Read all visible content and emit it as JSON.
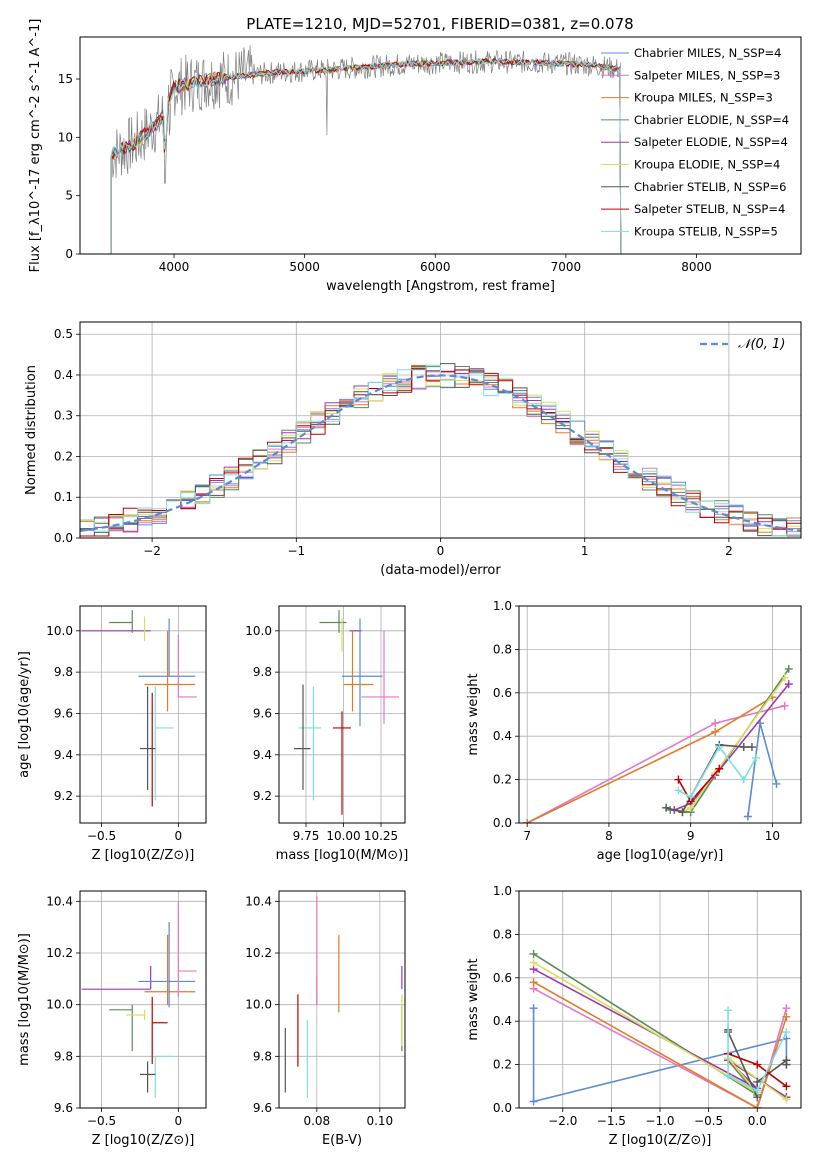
{
  "chart_data": [
    {
      "type": "line",
      "title": "PLATE=1210, MJD=52701, FIBERID=0381, z=0.078",
      "xlabel": "wavelength [Angstrom, rest frame]",
      "ylabel": "Flux [f_λ10^-17 erg cm^-2 s^-1 A^-1]",
      "xlim": [
        3280,
        8800
      ],
      "ylim": [
        0,
        18.6
      ],
      "xticks": [
        4000,
        5000,
        6000,
        7000,
        8000
      ],
      "yticks": [
        0,
        5,
        10,
        15
      ],
      "legend_position": "right",
      "data_color": "#808080",
      "continuum_anchors": {
        "x": [
          3520,
          3700,
          3900,
          4000,
          4300,
          4800,
          5200,
          5800,
          6400,
          6800,
          7200,
          7420
        ],
        "y": [
          8.5,
          9.5,
          11.5,
          14.3,
          15.0,
          15.6,
          15.8,
          16.3,
          16.5,
          16.4,
          16.2,
          15.8
        ]
      },
      "series": [
        {
          "name": "Chabrier MILES, N_SSP=4",
          "color": "#5b8bd6"
        },
        {
          "name": "Salpeter MILES, N_SSP=3",
          "color": "#e377c2"
        },
        {
          "name": "Kroupa MILES, N_SSP=3",
          "color": "#e07b2a"
        },
        {
          "name": "Chabrier ELODIE, N_SSP=4",
          "color": "#5a8a5a"
        },
        {
          "name": "Salpeter ELODIE, N_SSP=4",
          "color": "#9c3ab0"
        },
        {
          "name": "Kroupa ELODIE, N_SSP=4",
          "color": "#d6e05a"
        },
        {
          "name": "Chabrier STELIB, N_SSP=6",
          "color": "#555555"
        },
        {
          "name": "Salpeter STELIB, N_SSP=4",
          "color": "#c00000"
        },
        {
          "name": "Kroupa STELIB, N_SSP=5",
          "color": "#80dede"
        }
      ]
    },
    {
      "type": "histogram",
      "xlabel": "(data-model)/error",
      "ylabel": "Normed distribution",
      "xlim": [
        -2.5,
        2.5
      ],
      "ylim": [
        0,
        0.53
      ],
      "xticks": [
        -2,
        -1,
        0,
        1,
        2
      ],
      "yticks": [
        0.0,
        0.1,
        0.2,
        0.3,
        0.4,
        0.5
      ],
      "bin_width": 0.1,
      "legend": "𝒩(0, 1)",
      "gaussian_color": "#5b8bd6",
      "series_colors": [
        "#5b8bd6",
        "#e377c2",
        "#e07b2a",
        "#5a8a5a",
        "#9c3ab0",
        "#d6e05a",
        "#555555",
        "#c00000",
        "#80dede"
      ]
    },
    {
      "type": "scatter",
      "xlabel": "Z [log10(Z/Z⊙)]",
      "ylabel": "age  [log10(age/yr)]",
      "xlim": [
        -0.64,
        0.18
      ],
      "ylim": [
        9.07,
        10.12
      ],
      "xticks": [
        -0.5,
        0.0
      ],
      "yticks": [
        9.2,
        9.4,
        9.6,
        9.8,
        10.0
      ],
      "points": [
        {
          "x": -0.18,
          "y": 10.0,
          "xerr": [
            0.45,
            0.0
          ],
          "yerr": [
            0.0,
            0.0
          ],
          "color": "#9c3ab0"
        },
        {
          "x": -0.3,
          "y": 10.04,
          "xerr": [
            0.15,
            0.0
          ],
          "yerr": [
            0.05,
            0.06
          ],
          "color": "#5a8a5a"
        },
        {
          "x": -0.22,
          "y": 10.0,
          "xerr": [
            0.0,
            0.0
          ],
          "yerr": [
            0.05,
            0.07
          ],
          "color": "#d6e05a"
        },
        {
          "x": -0.06,
          "y": 9.78,
          "xerr": [
            0.2,
            0.17
          ],
          "yerr": [
            0.0,
            0.28
          ],
          "color": "#5b8bd6"
        },
        {
          "x": -0.07,
          "y": 9.74,
          "xerr": [
            0.15,
            0.18
          ],
          "yerr": [
            0.13,
            0.26
          ],
          "color": "#e07b2a"
        },
        {
          "x": 0.0,
          "y": 9.68,
          "xerr": [
            0.0,
            0.12
          ],
          "yerr": [
            0.0,
            0.3
          ],
          "color": "#e377c2"
        },
        {
          "x": -0.15,
          "y": 9.53,
          "xerr": [
            0.0,
            0.12
          ],
          "yerr": [
            0.35,
            0.2
          ],
          "color": "#80dede"
        },
        {
          "x": -0.2,
          "y": 9.43,
          "xerr": [
            0.05,
            0.05
          ],
          "yerr": [
            0.2,
            0.3
          ],
          "color": "#555555"
        },
        {
          "x": -0.17,
          "y": 9.6,
          "xerr": [
            0.0,
            0.0
          ],
          "yerr": [
            0.45,
            0.1
          ],
          "color": "#c00000"
        }
      ]
    },
    {
      "type": "scatter",
      "xlabel": "mass [log10(M/M⊙)]",
      "xlim": [
        9.57,
        10.41
      ],
      "ylim": [
        9.07,
        10.12
      ],
      "xticks": [
        9.75,
        10.0,
        10.25
      ],
      "xtick_labels": [
        "9.75",
        "10.00",
        "10.25"
      ],
      "yticks": [
        9.2,
        9.4,
        9.6,
        9.8,
        10.0
      ],
      "points": [
        {
          "x": 10.04,
          "y": 10.0,
          "xerr": [
            0.0,
            0.08
          ],
          "yerr": [
            0.0,
            0.0
          ],
          "color": "#9c3ab0"
        },
        {
          "x": 9.97,
          "y": 10.04,
          "xerr": [
            0.13,
            0.05
          ],
          "yerr": [
            0.05,
            0.06
          ],
          "color": "#5a8a5a"
        },
        {
          "x": 9.99,
          "y": 10.0,
          "xerr": [
            0.0,
            0.0
          ],
          "yerr": [
            0.1,
            0.06
          ],
          "color": "#d6e05a"
        },
        {
          "x": 10.11,
          "y": 9.78,
          "xerr": [
            0.12,
            0.15
          ],
          "yerr": [
            0.24,
            0.28
          ],
          "color": "#5b8bd6"
        },
        {
          "x": 10.06,
          "y": 9.74,
          "xerr": [
            0.06,
            0.14
          ],
          "yerr": [
            0.13,
            0.26
          ],
          "color": "#e07b2a"
        },
        {
          "x": 10.27,
          "y": 9.68,
          "xerr": [
            0.15,
            0.1
          ],
          "yerr": [
            0.13,
            0.32
          ],
          "color": "#e377c2"
        },
        {
          "x": 9.8,
          "y": 9.53,
          "xerr": [
            0.1,
            0.05
          ],
          "yerr": [
            0.35,
            0.2
          ],
          "color": "#80dede"
        },
        {
          "x": 9.73,
          "y": 9.43,
          "xerr": [
            0.06,
            0.05
          ],
          "yerr": [
            0.2,
            0.31
          ],
          "color": "#555555"
        },
        {
          "x": 9.99,
          "y": 9.53,
          "xerr": [
            0.06,
            0.06
          ],
          "yerr": [
            0.42,
            0.08
          ],
          "color": "#c00000"
        }
      ]
    },
    {
      "type": "line",
      "xlabel": "age  [log10(age/yr)]",
      "ylabel": "mass weight",
      "xlim": [
        6.9,
        10.35
      ],
      "ylim": [
        0,
        1.0
      ],
      "xticks": [
        7,
        8,
        9,
        10
      ],
      "yticks": [
        0.0,
        0.2,
        0.4,
        0.6,
        0.8,
        1.0
      ],
      "series": [
        {
          "color": "#5b8bd6",
          "x": [
            9.7,
            9.85,
            10.05
          ],
          "y": [
            0.03,
            0.46,
            0.18
          ]
        },
        {
          "color": "#e377c2",
          "x": [
            7.0,
            9.3,
            10.15
          ],
          "y": [
            0.0,
            0.46,
            0.54
          ]
        },
        {
          "color": "#e07b2a",
          "x": [
            7.0,
            9.3,
            10.0
          ],
          "y": [
            0.0,
            0.42,
            0.58
          ]
        },
        {
          "color": "#5a8a5a",
          "x": [
            8.75,
            9.0,
            9.3,
            10.2
          ],
          "y": [
            0.06,
            0.05,
            0.22,
            0.71
          ]
        },
        {
          "color": "#9c3ab0",
          "x": [
            8.8,
            9.0,
            9.3,
            10.2
          ],
          "y": [
            0.06,
            0.09,
            0.22,
            0.64
          ]
        },
        {
          "color": "#d6e05a",
          "x": [
            8.9,
            9.0,
            9.3,
            10.15
          ],
          "y": [
            0.05,
            0.07,
            0.23,
            0.67
          ]
        },
        {
          "color": "#555555",
          "x": [
            8.7,
            8.9,
            9.0,
            9.35,
            9.65,
            9.75
          ],
          "y": [
            0.07,
            0.05,
            0.12,
            0.36,
            0.35,
            0.35
          ]
        },
        {
          "color": "#c00000",
          "x": [
            8.85,
            9.0,
            9.35
          ],
          "y": [
            0.2,
            0.1,
            0.25
          ]
        },
        {
          "color": "#80dede",
          "x": [
            8.85,
            9.0,
            9.35,
            9.65,
            9.8
          ],
          "y": [
            0.15,
            0.12,
            0.35,
            0.2,
            0.3
          ]
        }
      ]
    },
    {
      "type": "scatter",
      "xlabel": "Z [log10(Z/Z⊙)]",
      "ylabel": "mass [log10(M/M⊙)]",
      "xlim": [
        -0.64,
        0.18
      ],
      "ylim": [
        9.6,
        10.44
      ],
      "xticks": [
        -0.5,
        0.0
      ],
      "yticks": [
        9.6,
        9.8,
        10.0,
        10.2,
        10.4
      ],
      "points": [
        {
          "x": -0.18,
          "y": 10.06,
          "xerr": [
            0.45,
            0.0
          ],
          "yerr": [
            0.0,
            0.09
          ],
          "color": "#9c3ab0"
        },
        {
          "x": -0.3,
          "y": 9.98,
          "xerr": [
            0.15,
            0.0
          ],
          "yerr": [
            0.16,
            0.02
          ],
          "color": "#5a8a5a"
        },
        {
          "x": -0.22,
          "y": 9.96,
          "xerr": [
            0.12,
            0.0
          ],
          "yerr": [
            0.02,
            0.02
          ],
          "color": "#d6e05a"
        },
        {
          "x": -0.06,
          "y": 10.09,
          "xerr": [
            0.2,
            0.17
          ],
          "yerr": [
            0.1,
            0.23
          ],
          "color": "#5b8bd6"
        },
        {
          "x": -0.07,
          "y": 10.05,
          "xerr": [
            0.15,
            0.18
          ],
          "yerr": [
            0.05,
            0.22
          ],
          "color": "#e07b2a"
        },
        {
          "x": 0.0,
          "y": 10.13,
          "xerr": [
            0.0,
            0.12
          ],
          "yerr": [
            0.1,
            0.27
          ],
          "color": "#e377c2"
        },
        {
          "x": -0.15,
          "y": 9.8,
          "xerr": [
            0.0,
            0.12
          ],
          "yerr": [
            0.16,
            0.0
          ],
          "color": "#80dede"
        },
        {
          "x": -0.2,
          "y": 9.73,
          "xerr": [
            0.05,
            0.05
          ],
          "yerr": [
            0.07,
            0.05
          ],
          "color": "#555555"
        },
        {
          "x": -0.17,
          "y": 9.93,
          "xerr": [
            0.0,
            0.1
          ],
          "yerr": [
            0.16,
            0.1
          ],
          "color": "#c00000"
        }
      ]
    },
    {
      "type": "scatter",
      "xlabel": "E(B-V)",
      "xlim": [
        0.068,
        0.108
      ],
      "ylim": [
        9.6,
        10.44
      ],
      "xticks": [
        0.08,
        0.1
      ],
      "xtick_labels": [
        "0.08",
        "0.10"
      ],
      "yticks": [
        9.6,
        9.8,
        10.0,
        10.2,
        10.4
      ],
      "points": [
        {
          "x": 0.107,
          "y": 10.06,
          "xerr": [
            0,
            0
          ],
          "yerr": [
            0.0,
            0.09
          ],
          "color": "#9c3ab0"
        },
        {
          "x": 0.107,
          "y": 9.98,
          "xerr": [
            0,
            0
          ],
          "yerr": [
            0.16,
            0.02
          ],
          "color": "#5a8a5a"
        },
        {
          "x": 0.107,
          "y": 9.96,
          "xerr": [
            0,
            0
          ],
          "yerr": [
            0.12,
            0.08
          ],
          "color": "#d6e05a"
        },
        {
          "x": 0.08,
          "y": 10.05,
          "xerr": [
            0,
            0
          ],
          "yerr": [
            0.05,
            0.06
          ],
          "color": "#5b8bd6"
        },
        {
          "x": 0.087,
          "y": 10.1,
          "xerr": [
            0,
            0
          ],
          "yerr": [
            0.13,
            0.17
          ],
          "color": "#e07b2a"
        },
        {
          "x": 0.08,
          "y": 10.2,
          "xerr": [
            0,
            0
          ],
          "yerr": [
            0.2,
            0.22
          ],
          "color": "#e377c2"
        },
        {
          "x": 0.077,
          "y": 9.8,
          "xerr": [
            0,
            0
          ],
          "yerr": [
            0.16,
            0.14
          ],
          "color": "#80dede"
        },
        {
          "x": 0.07,
          "y": 9.78,
          "xerr": [
            0,
            0
          ],
          "yerr": [
            0.12,
            0.13
          ],
          "color": "#555555"
        },
        {
          "x": 0.074,
          "y": 9.9,
          "xerr": [
            0,
            0
          ],
          "yerr": [
            0.14,
            0.14
          ],
          "color": "#c00000"
        }
      ]
    },
    {
      "type": "line",
      "xlabel": "Z [log10(Z/Z⊙)]",
      "ylabel": "mass weight",
      "xlim": [
        -2.45,
        0.45
      ],
      "ylim": [
        0,
        1.0
      ],
      "xticks": [
        -2.0,
        -1.5,
        -1.0,
        -0.5,
        0.0
      ],
      "xtick_labels": [
        "−2.0",
        "−1.5",
        "−1.0",
        "−0.5",
        "0.0"
      ],
      "yticks": [
        0.0,
        0.2,
        0.4,
        0.6,
        0.8,
        1.0
      ],
      "series": [
        {
          "color": "#5b8bd6",
          "x": [
            -2.3,
            -2.3,
            0.3,
            0.3
          ],
          "y": [
            0.46,
            0.03,
            0.32,
            0.2
          ]
        },
        {
          "color": "#e377c2",
          "x": [
            -2.3,
            0.0,
            0.3
          ],
          "y": [
            0.55,
            0.0,
            0.46
          ]
        },
        {
          "color": "#e07b2a",
          "x": [
            -2.3,
            0.0,
            0.3
          ],
          "y": [
            0.58,
            0.0,
            0.42
          ]
        },
        {
          "color": "#5a8a5a",
          "x": [
            -2.3,
            0.0,
            -0.3,
            0.3
          ],
          "y": [
            0.71,
            0.06,
            0.22,
            0.05
          ]
        },
        {
          "color": "#9c3ab0",
          "x": [
            -2.3,
            0.0,
            -0.3,
            0.3
          ],
          "y": [
            0.64,
            0.09,
            0.22,
            0.05
          ]
        },
        {
          "color": "#d6e05a",
          "x": [
            -2.3,
            0.0,
            -0.3,
            0.3
          ],
          "y": [
            0.67,
            0.07,
            0.23,
            0.04
          ]
        },
        {
          "color": "#555555",
          "x": [
            -0.3,
            -0.3,
            0.0,
            0.0,
            0.3,
            0.3
          ],
          "y": [
            0.36,
            0.35,
            0.05,
            0.12,
            0.22,
            0.2
          ]
        },
        {
          "color": "#c00000",
          "x": [
            -0.3,
            0.0,
            0.3
          ],
          "y": [
            0.25,
            0.2,
            0.1
          ]
        },
        {
          "color": "#80dede",
          "x": [
            -0.3,
            -0.3,
            0.0,
            0.3
          ],
          "y": [
            0.45,
            0.15,
            0.08,
            0.35
          ]
        }
      ]
    }
  ]
}
